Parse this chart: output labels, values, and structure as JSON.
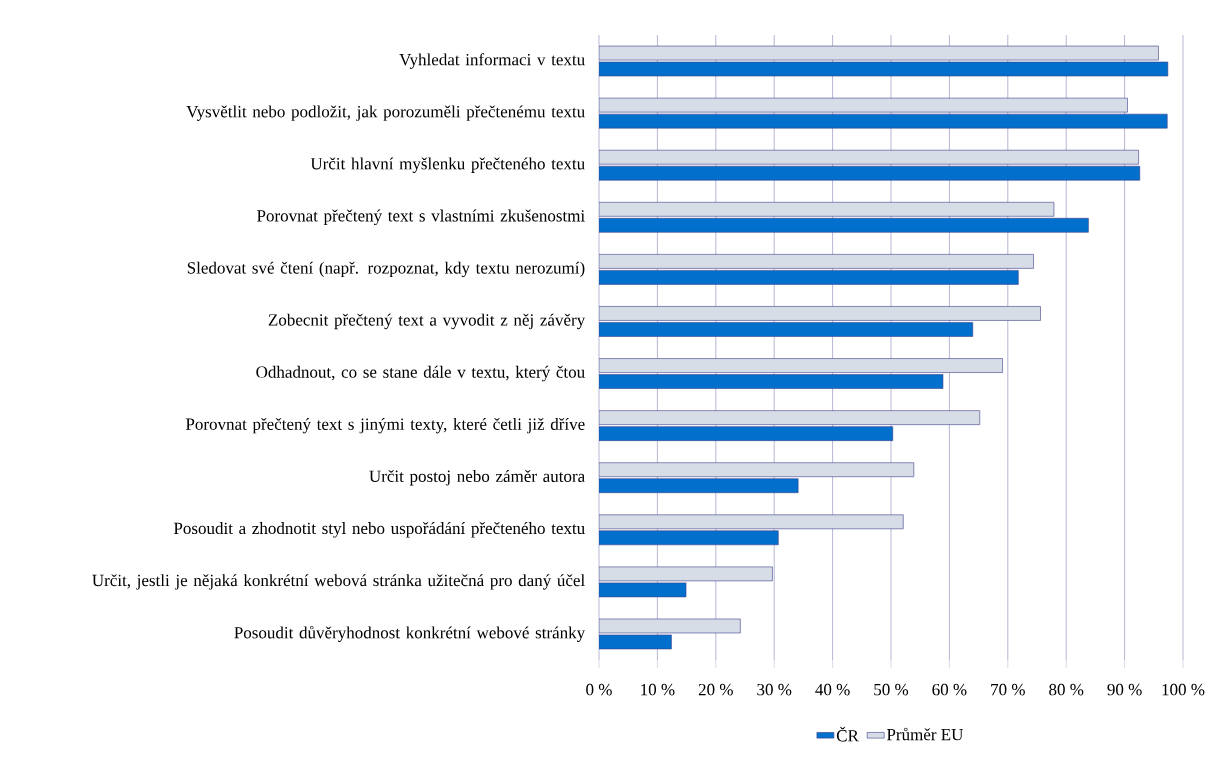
{
  "chart_data": {
    "type": "bar",
    "orientation": "horizontal",
    "categories": [
      "Vyhledat informaci v textu",
      "Vysvětlit nebo podložit, jak porozuměli přečtenému textu",
      "Určit hlavní myšlenku přečteného textu",
      "Porovnat přečtený text s vlastními zkušenostmi",
      "Sledovat své čtení (např. rozpoznat, kdy textu nerozumí)",
      "Zobecnit přečtený text a vyvodit z něj závěry",
      "Odhadnout, co se stane dále v textu, který čtou",
      "Porovnat přečtený text s jinými texty, které četli již dříve",
      "Určit postoj nebo záměr autora",
      "Posoudit a zhodnotit styl nebo uspořádání přečteného textu",
      "Určit, jestli je nějaká konkrétní webová stránka užitečná pro daný účel",
      "Posoudit důvěryhodnost konkrétní webové stránky"
    ],
    "series": [
      {
        "name": "ČR",
        "color": "#0070cc",
        "values": [
          97.4,
          97.3,
          92.6,
          83.8,
          71.8,
          64.0,
          58.9,
          50.3,
          34.1,
          30.7,
          14.9,
          12.4
        ]
      },
      {
        "name": "Průměr EU",
        "color": "#d6dde6",
        "values": [
          95.8,
          90.5,
          92.4,
          77.9,
          74.4,
          75.6,
          69.1,
          65.2,
          53.9,
          52.1,
          29.7,
          24.2
        ]
      }
    ],
    "xlim": [
      0,
      100
    ],
    "xticks": [
      {
        "value": 0,
        "label": "0 %"
      },
      {
        "value": 10,
        "label": "10 %"
      },
      {
        "value": 20,
        "label": "20 %"
      },
      {
        "value": 30,
        "label": "30 %"
      },
      {
        "value": 40,
        "label": "40 %"
      },
      {
        "value": 50,
        "label": "50 %"
      },
      {
        "value": 60,
        "label": "60 %"
      },
      {
        "value": 70,
        "label": "70 %"
      },
      {
        "value": 80,
        "label": "80 %"
      },
      {
        "value": 90,
        "label": "90 %"
      },
      {
        "value": 100,
        "label": "100 %"
      }
    ],
    "grid": "x",
    "legend": "bottom"
  }
}
